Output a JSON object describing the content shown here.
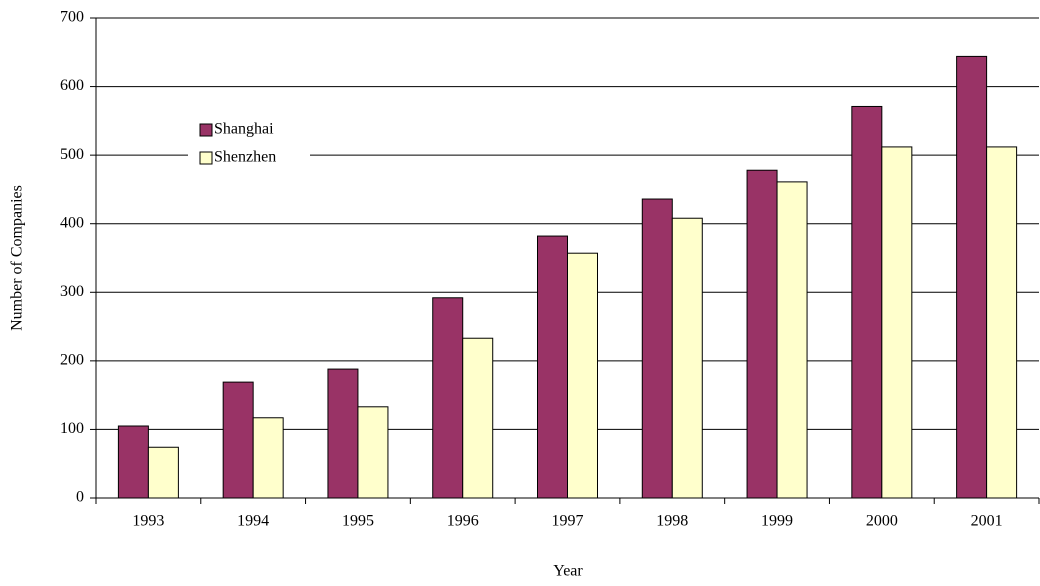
{
  "chart_data": {
    "type": "bar",
    "categories": [
      "1993",
      "1994",
      "1995",
      "1996",
      "1997",
      "1998",
      "1999",
      "2000",
      "2001"
    ],
    "series": [
      {
        "name": "Shanghai",
        "color": "#993366",
        "values": [
          105,
          169,
          188,
          292,
          382,
          436,
          478,
          571,
          644
        ]
      },
      {
        "name": "Shenzhen",
        "color": "#ffffcc",
        "values": [
          74,
          117,
          133,
          233,
          357,
          408,
          461,
          512,
          512
        ]
      }
    ],
    "x_label": "Year",
    "y_label": "Number of Companies",
    "ylim": [
      0,
      700
    ],
    "yticks": [
      0,
      100,
      200,
      300,
      400,
      500,
      600,
      700
    ],
    "grid": true,
    "legend_position": "upper left"
  }
}
